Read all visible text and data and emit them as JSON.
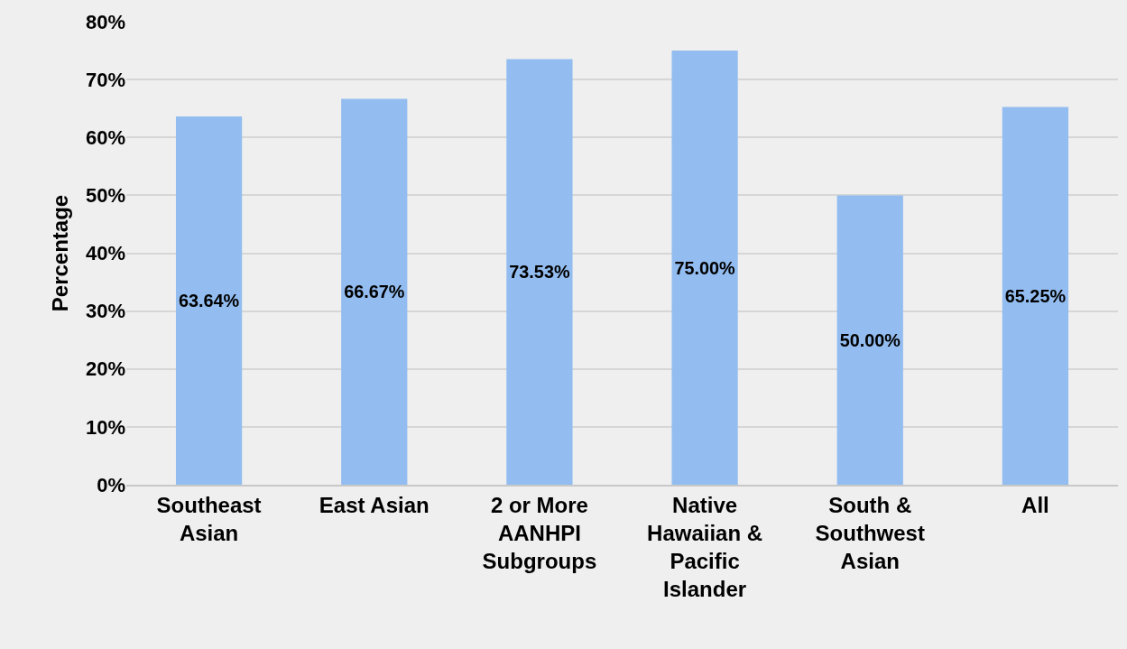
{
  "chart_data": {
    "type": "bar",
    "ylabel": "Percentage",
    "categories": [
      "Southeast Asian",
      "East Asian",
      "2 or More AANHPI Subgroups",
      "Native Hawaiian & Pacific Islander",
      "South & Southwest Asian",
      "All"
    ],
    "values": [
      63.64,
      66.67,
      73.53,
      75.0,
      50.0,
      65.25
    ],
    "value_labels": [
      "63.64%",
      "66.67%",
      "73.53%",
      "75.00%",
      "50.00%",
      "65.25%"
    ],
    "color": "#93bdf0",
    "ylim": [
      0,
      80
    ],
    "yticks": [
      {
        "value": 0,
        "label": "0%"
      },
      {
        "value": 10,
        "label": "10%"
      },
      {
        "value": 20,
        "label": "20%"
      },
      {
        "value": 30,
        "label": "30%"
      },
      {
        "value": 40,
        "label": "40%"
      },
      {
        "value": 50,
        "label": "50%"
      },
      {
        "value": 60,
        "label": "60%"
      },
      {
        "value": 70,
        "label": "70%"
      },
      {
        "value": 80,
        "label": "80%"
      }
    ],
    "grid": "y"
  }
}
